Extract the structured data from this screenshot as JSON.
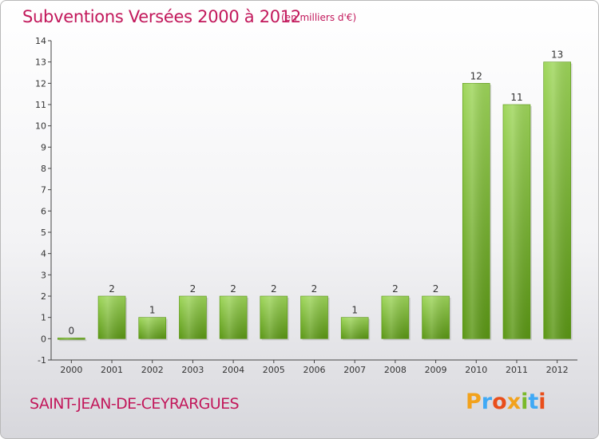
{
  "header": {
    "title": "Subventions Versées 2000 à 2012",
    "subtitle": "(en milliers d'€)"
  },
  "footer": {
    "commune": "SAINT-JEAN-DE-CEYRARGUES",
    "logo_letters": [
      "P",
      "r",
      "o",
      "x",
      "i",
      "t",
      "i"
    ],
    "logo_colors": [
      "#f2a21c",
      "#3fa9f5",
      "#e94e1b",
      "#f2a21c",
      "#7ab929",
      "#3fa9f5",
      "#e94e1b"
    ]
  },
  "chart_data": {
    "type": "bar",
    "title": "Subventions Versées 2000 à 2012",
    "subtitle": "(en milliers d'€)",
    "categories": [
      "2000",
      "2001",
      "2002",
      "2003",
      "2004",
      "2005",
      "2006",
      "2007",
      "2008",
      "2009",
      "2010",
      "2011",
      "2012"
    ],
    "values": [
      0,
      2,
      1,
      2,
      2,
      2,
      2,
      1,
      2,
      2,
      12,
      11,
      13
    ],
    "data_labels": [
      "0",
      "2",
      "1",
      "2",
      "2",
      "2",
      "2",
      "1",
      "2",
      "2",
      "12",
      "11",
      "13"
    ],
    "ylim": [
      -1,
      14
    ],
    "yticks": [
      -1,
      0,
      1,
      2,
      3,
      4,
      5,
      6,
      7,
      8,
      9,
      10,
      11,
      12,
      13,
      14
    ],
    "grid": false,
    "bar_color": "#7ab929",
    "bar_color_dark": "#5a9614",
    "bar_color_light": "#9ed65a"
  }
}
